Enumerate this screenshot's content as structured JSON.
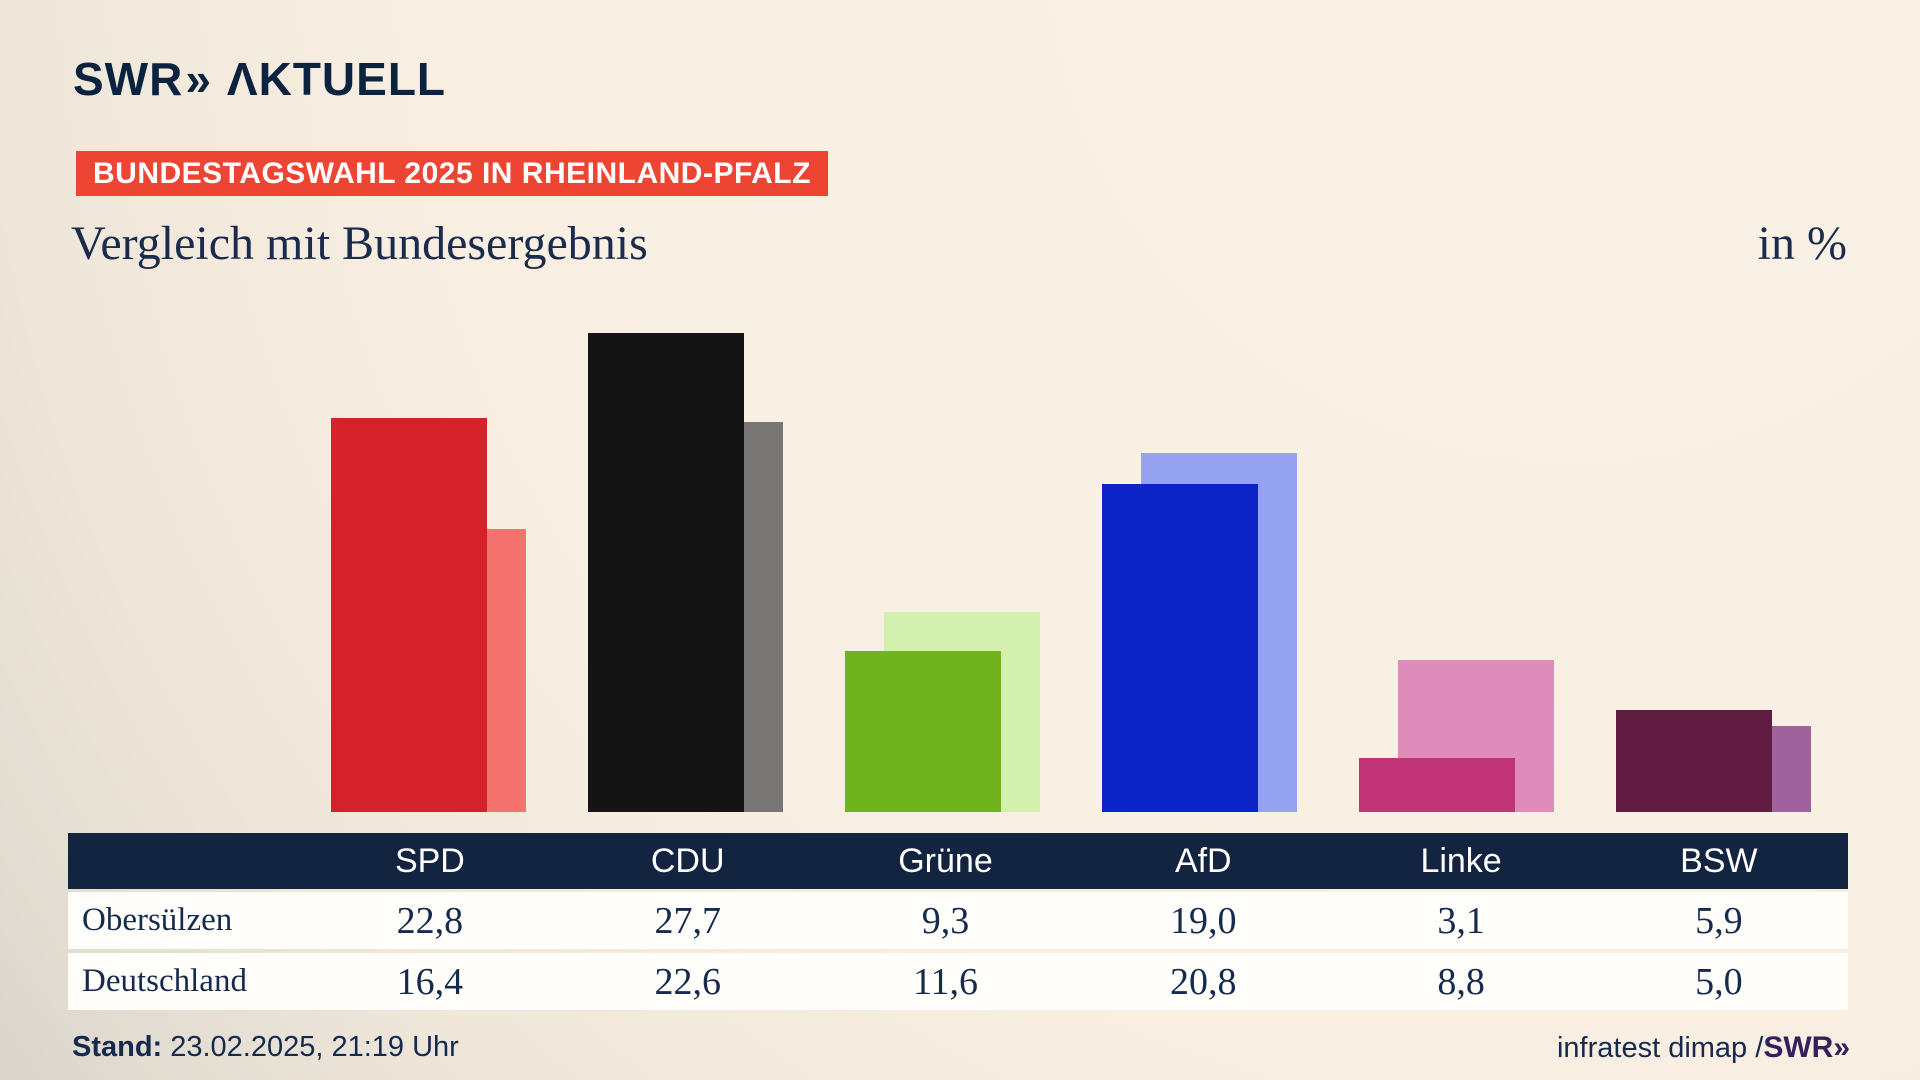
{
  "logo": {
    "brand": "SWR",
    "chevron": "»",
    "suffix": "ΛKTUELL"
  },
  "badge": "BUNDESTAGSWAHL 2025 IN RHEINLAND-PFALZ",
  "title": "Vergleich mit Bundesergebnis",
  "unit_label": "in %",
  "chart_data": {
    "type": "bar",
    "title": "Vergleich mit Bundesergebnis",
    "unit": "in %",
    "categories": [
      "SPD",
      "CDU",
      "Grüne",
      "AfD",
      "Linke",
      "BSW"
    ],
    "series": [
      {
        "name": "Obersülzen",
        "role": "front",
        "values": [
          22.8,
          27.7,
          9.3,
          19.0,
          3.1,
          5.9
        ],
        "colors": [
          "#d4212a",
          "#141414",
          "#70b31c",
          "#0d24c8",
          "#c03376",
          "#621b41"
        ]
      },
      {
        "name": "Deutschland",
        "role": "back",
        "values": [
          16.4,
          22.6,
          11.6,
          20.8,
          8.8,
          5.0
        ],
        "colors": [
          "#f5736e",
          "#777675",
          "#d3f0ae",
          "#96a3f3",
          "#e08cbb",
          "#a0629c"
        ]
      }
    ],
    "ylim": [
      0,
      30
    ],
    "grid": false,
    "legend_position": "none",
    "value_format": "decimal-comma-1"
  },
  "footer": {
    "stand_label": "Stand:",
    "stand_value": "23.02.2025, 21:19 Uhr",
    "source_text": "infratest dimap / ",
    "source_brand": "SWR",
    "source_chevron": "»"
  },
  "colors": {
    "background_cream": "#f8efe2",
    "background_gray": "#c9c7c4",
    "navy_text": "#152a4e",
    "table_header_bg": "#132440",
    "table_row_bg": "#fffefb",
    "badge_red": "#ee4433",
    "logo_navy": "#0c2340",
    "swr_purple": "#34205c"
  }
}
